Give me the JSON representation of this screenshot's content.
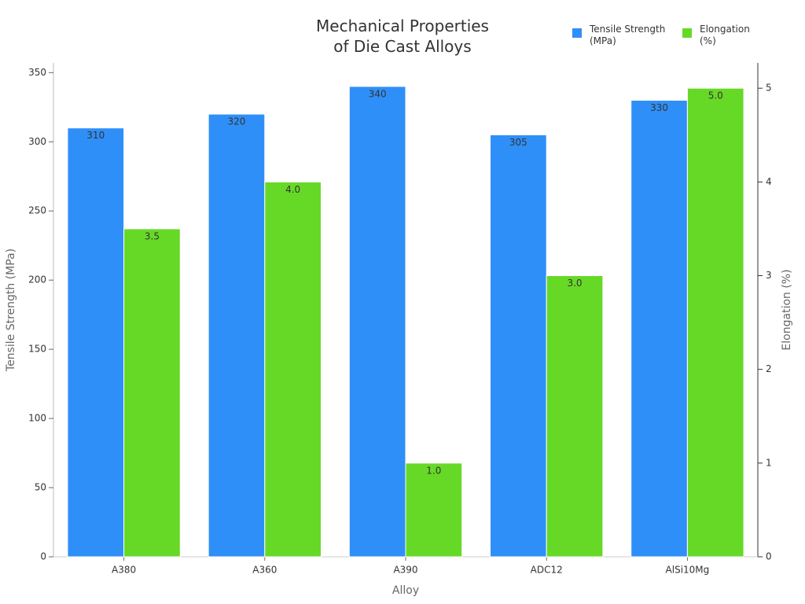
{
  "chart_data": {
    "type": "bar",
    "title": "Mechanical Properties of Die Cast Alloys",
    "x_label": "Alloy",
    "y_label": "Tensile Strength (MPa)",
    "y2_label": "Elongation (%)",
    "categories": [
      "A380",
      "A360",
      "A390",
      "ADC12",
      "AlSi10Mg"
    ],
    "series": [
      {
        "name": "Tensile Strength (MPa)",
        "color": "#2f8ff8",
        "values": [
          310,
          320,
          340,
          305,
          330
        ]
      },
      {
        "name": "Elongation (%)",
        "color": "#66d926",
        "axis": "y2",
        "values": [
          3.5,
          4,
          1,
          3,
          5
        ],
        "value_labels": [
          "3.5",
          "4.0",
          "1.0",
          "3.0",
          "5.0"
        ]
      }
    ],
    "ylim": [
      0,
      357
    ],
    "yticks": [
      0,
      50,
      100,
      150,
      200,
      250,
      300,
      350
    ],
    "y2lim": [
      0,
      5.27
    ],
    "y2ticks": [
      0,
      1,
      2,
      3,
      4,
      5
    ],
    "legend": "top-right"
  }
}
